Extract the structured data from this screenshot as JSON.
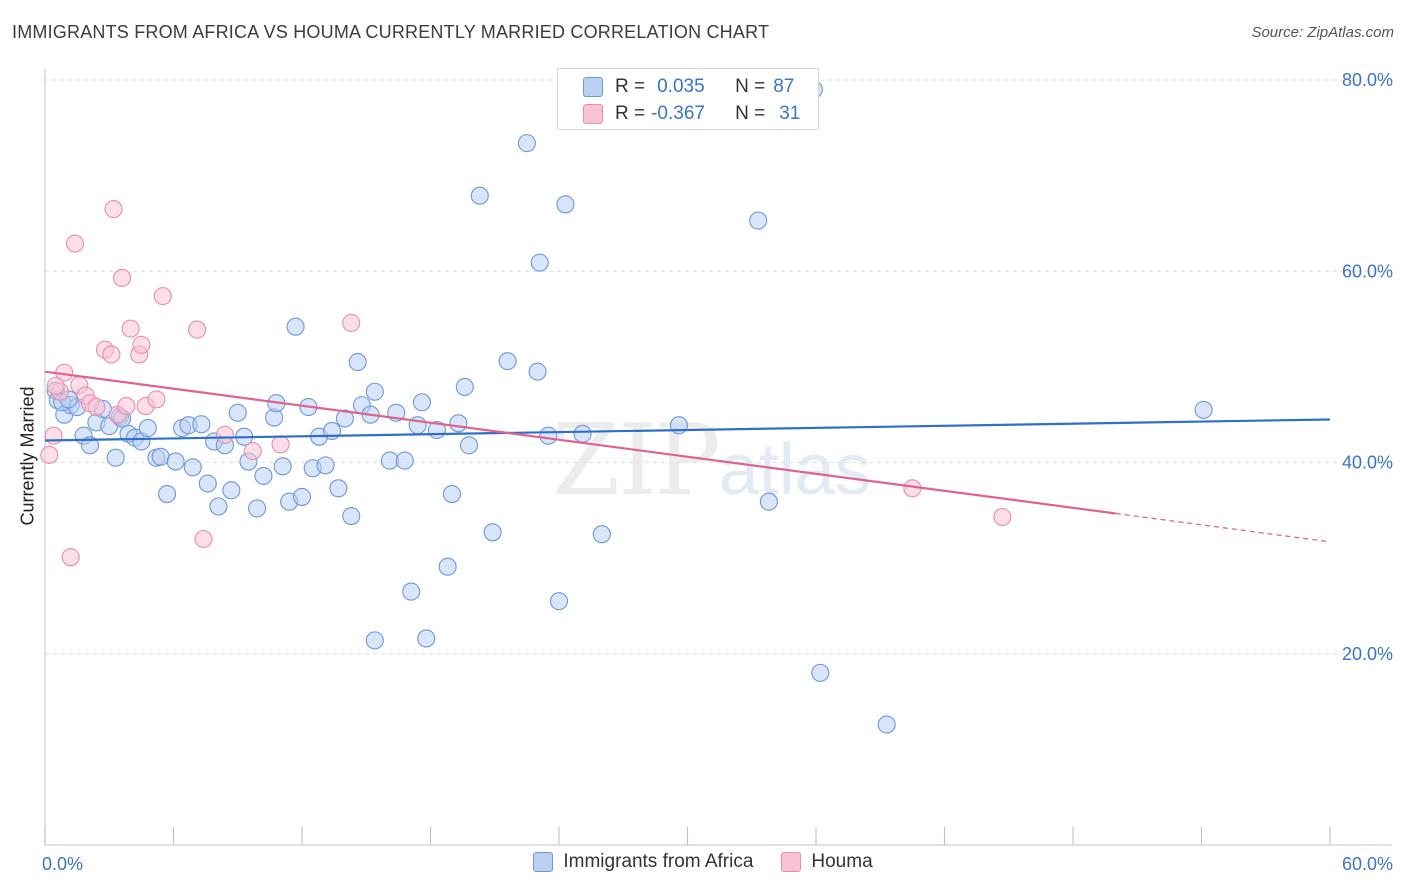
{
  "title": "IMMIGRANTS FROM AFRICA VS HOUMA CURRENTLY MARRIED CORRELATION CHART",
  "source": "Source: ZipAtlas.com",
  "watermark": {
    "zip": "ZIP",
    "atlas": "atlas"
  },
  "legend": [
    {
      "r_label": "R =",
      "r_value": "0.035",
      "n_label": "N =",
      "n_value": "87"
    },
    {
      "r_label": "R =",
      "r_value": "-0.367",
      "n_label": "N =",
      "n_value": "31"
    }
  ],
  "bottom_legend": [
    "Immigrants from Africa",
    "Houma"
  ],
  "colors": {
    "blue_fill": "#b9d0f2",
    "blue_stroke": "#6c98d8",
    "blue_line": "#2e6fcc",
    "pink_fill": "#f7c3d4",
    "pink_stroke": "#e68eae",
    "pink_line": "#e0628f",
    "tick_text": "#3a75c4",
    "grid": "#dedede"
  },
  "chart_data": {
    "type": "scatter",
    "title": "IMMIGRANTS FROM AFRICA VS HOUMA CURRENTLY MARRIED CORRELATION CHART",
    "xlabel": "",
    "ylabel": "Currently Married",
    "xlim": [
      0,
      60
    ],
    "ylim": [
      0,
      82
    ],
    "x_tick_labels": [
      "0.0%",
      "60.0%"
    ],
    "y_ticks": [
      20,
      40,
      60,
      80
    ],
    "y_tick_labels": [
      "20.0%",
      "40.0%",
      "60.0%",
      "80.0%"
    ],
    "grid": true,
    "series": [
      {
        "name": "Immigrants from Africa",
        "color": "#6c98d8",
        "trend": {
          "x": [
            0,
            60
          ],
          "y": [
            42.3,
            44.5
          ]
        },
        "points": [
          [
            0.5,
            47.5
          ],
          [
            0.6,
            46.5
          ],
          [
            0.9,
            45.0
          ],
          [
            1.2,
            46.0
          ],
          [
            1.5,
            45.8
          ],
          [
            1.8,
            42.8
          ],
          [
            2.1,
            41.8
          ],
          [
            2.4,
            44.2
          ],
          [
            2.7,
            45.6
          ],
          [
            3.0,
            43.8
          ],
          [
            3.3,
            40.5
          ],
          [
            3.5,
            44.8
          ],
          [
            3.9,
            43.0
          ],
          [
            4.2,
            42.6
          ],
          [
            4.5,
            42.2
          ],
          [
            4.8,
            43.6
          ],
          [
            5.2,
            40.5
          ],
          [
            5.4,
            40.6
          ],
          [
            5.7,
            36.7
          ],
          [
            6.1,
            40.1
          ],
          [
            6.4,
            43.6
          ],
          [
            6.7,
            43.9
          ],
          [
            6.9,
            39.5
          ],
          [
            7.3,
            44.0
          ],
          [
            7.6,
            37.8
          ],
          [
            7.9,
            42.2
          ],
          [
            8.1,
            35.4
          ],
          [
            8.4,
            41.8
          ],
          [
            8.7,
            37.1
          ],
          [
            9.0,
            45.2
          ],
          [
            9.3,
            42.7
          ],
          [
            9.5,
            40.1
          ],
          [
            9.9,
            35.2
          ],
          [
            10.2,
            38.6
          ],
          [
            10.7,
            44.7
          ],
          [
            10.8,
            46.2
          ],
          [
            11.1,
            39.6
          ],
          [
            11.4,
            35.9
          ],
          [
            11.7,
            54.2
          ],
          [
            12.0,
            36.4
          ],
          [
            12.3,
            45.8
          ],
          [
            12.5,
            39.4
          ],
          [
            12.8,
            42.7
          ],
          [
            13.1,
            39.7
          ],
          [
            13.4,
            43.3
          ],
          [
            13.7,
            37.3
          ],
          [
            14.0,
            44.6
          ],
          [
            14.3,
            34.4
          ],
          [
            14.6,
            50.5
          ],
          [
            14.8,
            46.0
          ],
          [
            15.2,
            45.0
          ],
          [
            15.4,
            47.4
          ],
          [
            16.1,
            40.2
          ],
          [
            16.4,
            45.2
          ],
          [
            16.8,
            40.2
          ],
          [
            17.1,
            26.5
          ],
          [
            17.4,
            43.9
          ],
          [
            17.6,
            46.3
          ],
          [
            17.8,
            21.6
          ],
          [
            18.3,
            43.4
          ],
          [
            15.4,
            21.4
          ],
          [
            18.8,
            29.1
          ],
          [
            19.0,
            36.7
          ],
          [
            19.3,
            44.1
          ],
          [
            19.6,
            47.9
          ],
          [
            19.8,
            41.8
          ],
          [
            20.3,
            67.9
          ],
          [
            20.9,
            32.7
          ],
          [
            21.6,
            50.6
          ],
          [
            22.5,
            73.4
          ],
          [
            23.0,
            49.5
          ],
          [
            23.1,
            60.9
          ],
          [
            23.5,
            42.8
          ],
          [
            24.0,
            25.5
          ],
          [
            24.3,
            67.0
          ],
          [
            25.1,
            43.0
          ],
          [
            26.0,
            32.5
          ],
          [
            29.6,
            43.9
          ],
          [
            33.3,
            65.3
          ],
          [
            33.8,
            35.9
          ],
          [
            35.9,
            79.0
          ],
          [
            36.2,
            18.0
          ],
          [
            39.3,
            12.6
          ],
          [
            54.1,
            45.5
          ],
          [
            0.8,
            46.3
          ],
          [
            1.1,
            46.6
          ],
          [
            3.6,
            44.6
          ]
        ]
      },
      {
        "name": "Houma",
        "color": "#e68eae",
        "trend": {
          "x": [
            0,
            60
          ],
          "y": [
            49.5,
            31.7
          ],
          "solid_until": 50
        },
        "points": [
          [
            0.2,
            40.8
          ],
          [
            0.4,
            42.8
          ],
          [
            0.7,
            47.4
          ],
          [
            0.9,
            49.4
          ],
          [
            1.2,
            30.1
          ],
          [
            1.4,
            62.9
          ],
          [
            1.6,
            48.1
          ],
          [
            1.9,
            47.0
          ],
          [
            2.1,
            46.2
          ],
          [
            2.4,
            45.8
          ],
          [
            2.8,
            51.8
          ],
          [
            3.1,
            51.3
          ],
          [
            3.2,
            66.5
          ],
          [
            3.4,
            45.0
          ],
          [
            3.6,
            59.3
          ],
          [
            3.8,
            45.9
          ],
          [
            4.0,
            54.0
          ],
          [
            4.4,
            51.3
          ],
          [
            4.5,
            52.3
          ],
          [
            4.7,
            45.9
          ],
          [
            5.2,
            46.6
          ],
          [
            5.5,
            57.4
          ],
          [
            7.1,
            53.9
          ],
          [
            7.4,
            32.0
          ],
          [
            8.4,
            42.9
          ],
          [
            9.7,
            41.2
          ],
          [
            11.0,
            41.9
          ],
          [
            14.3,
            54.6
          ],
          [
            40.5,
            37.3
          ],
          [
            44.7,
            34.3
          ],
          [
            0.5,
            48.0
          ]
        ]
      }
    ]
  }
}
